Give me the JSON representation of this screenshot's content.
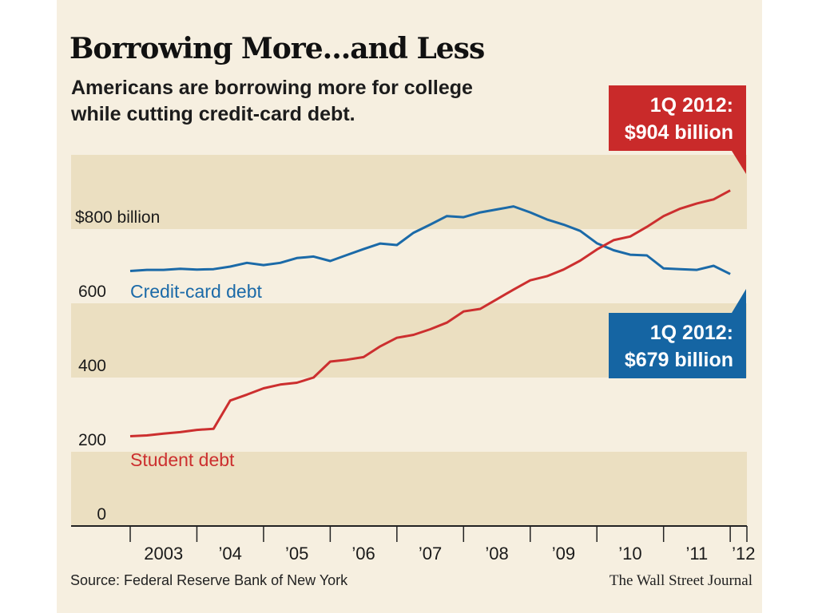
{
  "chart_data": {
    "type": "line",
    "title": "Borrowing More...and Less",
    "subtitle": [
      "Americans are borrowing more for college",
      "while cutting credit-card debt."
    ],
    "y_unit_label": "$800 billion",
    "ylim": [
      0,
      1000
    ],
    "y_ticks": [
      {
        "value": 0,
        "label": "0"
      },
      {
        "value": 200,
        "label": "200"
      },
      {
        "value": 400,
        "label": "400"
      },
      {
        "value": 600,
        "label": "600"
      },
      {
        "value": 800,
        "label": "$800 billion"
      }
    ],
    "x_ticks": [
      {
        "year": 2003,
        "label": "2003"
      },
      {
        "year": 2004,
        "label": "’04"
      },
      {
        "year": 2005,
        "label": "’05"
      },
      {
        "year": 2006,
        "label": "’06"
      },
      {
        "year": 2007,
        "label": "’07"
      },
      {
        "year": 2008,
        "label": "’08"
      },
      {
        "year": 2009,
        "label": "’09"
      },
      {
        "year": 2010,
        "label": "’10"
      },
      {
        "year": 2011,
        "label": "’11"
      },
      {
        "year": 2012,
        "label": "’12"
      }
    ],
    "xlim": [
      2003,
      2012.25
    ],
    "series": [
      {
        "name": "Credit-card debt",
        "color": "#1b6aa8",
        "points": [
          [
            2003.0,
            687
          ],
          [
            2003.25,
            690
          ],
          [
            2003.5,
            690
          ],
          [
            2003.75,
            693
          ],
          [
            2004.0,
            691
          ],
          [
            2004.25,
            692
          ],
          [
            2004.5,
            699
          ],
          [
            2004.75,
            709
          ],
          [
            2005.0,
            703
          ],
          [
            2005.25,
            709
          ],
          [
            2005.5,
            722
          ],
          [
            2005.75,
            726
          ],
          [
            2006.0,
            714
          ],
          [
            2006.25,
            730
          ],
          [
            2006.5,
            746
          ],
          [
            2006.75,
            761
          ],
          [
            2007.0,
            757
          ],
          [
            2007.25,
            790
          ],
          [
            2007.5,
            812
          ],
          [
            2007.75,
            835
          ],
          [
            2008.0,
            832
          ],
          [
            2008.25,
            845
          ],
          [
            2008.5,
            853
          ],
          [
            2008.75,
            861
          ],
          [
            2009.0,
            845
          ],
          [
            2009.25,
            826
          ],
          [
            2009.5,
            812
          ],
          [
            2009.75,
            795
          ],
          [
            2010.0,
            762
          ],
          [
            2010.25,
            743
          ],
          [
            2010.5,
            731
          ],
          [
            2010.75,
            729
          ],
          [
            2011.0,
            694
          ],
          [
            2011.25,
            692
          ],
          [
            2011.5,
            690
          ],
          [
            2011.75,
            701
          ],
          [
            2012.0,
            679
          ]
        ]
      },
      {
        "name": "Student debt",
        "color": "#cc2f2f",
        "points": [
          [
            2003.0,
            242
          ],
          [
            2003.25,
            244
          ],
          [
            2003.5,
            249
          ],
          [
            2003.75,
            253
          ],
          [
            2004.0,
            259
          ],
          [
            2004.25,
            262
          ],
          [
            2004.5,
            338
          ],
          [
            2004.75,
            354
          ],
          [
            2005.0,
            371
          ],
          [
            2005.25,
            381
          ],
          [
            2005.5,
            386
          ],
          [
            2005.75,
            400
          ],
          [
            2006.0,
            443
          ],
          [
            2006.25,
            448
          ],
          [
            2006.5,
            455
          ],
          [
            2006.75,
            484
          ],
          [
            2007.0,
            507
          ],
          [
            2007.25,
            515
          ],
          [
            2007.5,
            530
          ],
          [
            2007.75,
            548
          ],
          [
            2008.0,
            578
          ],
          [
            2008.25,
            585
          ],
          [
            2008.5,
            611
          ],
          [
            2008.75,
            637
          ],
          [
            2009.0,
            662
          ],
          [
            2009.25,
            673
          ],
          [
            2009.5,
            691
          ],
          [
            2009.75,
            715
          ],
          [
            2010.0,
            745
          ],
          [
            2010.25,
            770
          ],
          [
            2010.5,
            780
          ],
          [
            2010.75,
            806
          ],
          [
            2011.0,
            835
          ],
          [
            2011.25,
            855
          ],
          [
            2011.5,
            869
          ],
          [
            2011.75,
            880
          ],
          [
            2012.0,
            904
          ]
        ]
      }
    ],
    "callouts": {
      "student": {
        "line1": "1Q 2012:",
        "line2": "$904 billion",
        "color": "#c92a2a"
      },
      "credit": {
        "line1": "1Q 2012:",
        "line2": "$679 billion",
        "color": "#1565a3"
      }
    },
    "source": "Source: Federal Reserve Bank of New York",
    "credit": "The Wall Street Journal"
  }
}
